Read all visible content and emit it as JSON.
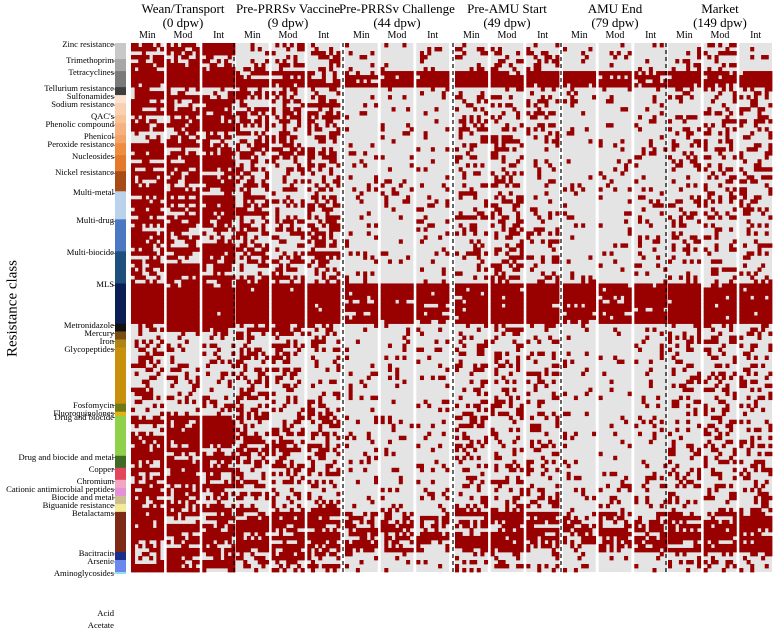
{
  "figure": {
    "y_axis_label": "Resistance class",
    "timepoints": [
      {
        "name": "Wean/Transport",
        "dpw": "(0 dpw)"
      },
      {
        "name": "Pre-PRRSv Vaccine",
        "dpw": "(9 dpw)"
      },
      {
        "name": "Pre-PRRSv Challenge",
        "dpw": "(44 dpw)"
      },
      {
        "name": "Pre-AMU Start",
        "dpw": "(49 dpw)"
      },
      {
        "name": "AMU End",
        "dpw": "(79 dpw)"
      },
      {
        "name": "Market",
        "dpw": "(149 dpw)"
      }
    ],
    "groups": [
      "Min",
      "Mod",
      "Int"
    ]
  },
  "chart_data": {
    "type": "heatmap",
    "value_meaning": "presence (dark red) / absence (light grey) of resistance genes per sample",
    "colors": {
      "present": "#990000",
      "absent": "#e4e4e4"
    },
    "classes": [
      {
        "name": "Zinc resistance",
        "color": "#c8c8c8"
      },
      {
        "name": "Trimethoprim",
        "color": "#a7a7a7"
      },
      {
        "name": "Tetracyclines",
        "color": "#7a7a7a"
      },
      {
        "name": "Tellurium resistance",
        "color": "#3e3e3e"
      },
      {
        "name": "Sulfonamides",
        "color": "#fde3cf"
      },
      {
        "name": "Sodium resistance",
        "color": "#fbd0b0"
      },
      {
        "name": "QAC's",
        "color": "#f9c295"
      },
      {
        "name": "Phenolic compound",
        "color": "#f6b17e"
      },
      {
        "name": "Phenicol",
        "color": "#f3a366"
      },
      {
        "name": "Peroxide resistance",
        "color": "#ef8c3f"
      },
      {
        "name": "Nucleosides",
        "color": "#e4782b"
      },
      {
        "name": "Nickel resistance",
        "color": "#a84b14"
      },
      {
        "name": "Multi-metal",
        "color": "#bad2ec"
      },
      {
        "name": "Multi-drug",
        "color": "#4a78c2"
      },
      {
        "name": "Multi-biocide",
        "color": "#1f4f7c"
      },
      {
        "name": "MLS",
        "color": "#0c1f55"
      },
      {
        "name": "Metronidazole",
        "color": "#111111"
      },
      {
        "name": "Mercury",
        "color": "#7a4e12"
      },
      {
        "name": "Iron",
        "color": "#b08414"
      },
      {
        "name": "Glycopeptides",
        "color": "#c9900b"
      },
      {
        "name": "Fosfomycin",
        "color": "#6e7817"
      },
      {
        "name": "Fluoroquinolones",
        "color": "#e6b110"
      },
      {
        "name": "Drug and biocide",
        "color": "#8fd14a"
      },
      {
        "name": "Drug and biocide and metal",
        "color": "#3f6b24"
      },
      {
        "name": "Copper",
        "color": "#e3455d"
      },
      {
        "name": "Chromium",
        "color": "#f3a6c2"
      },
      {
        "name": "Cationic antimicrobial peptides",
        "color": "#e58fd8"
      },
      {
        "name": "Biocide and metal",
        "color": "#cdbd8f"
      },
      {
        "name": "Biguanide resistance",
        "color": "#f2ea96"
      },
      {
        "name": "Betalactams",
        "color": "#7e2a16"
      },
      {
        "name": "Bacitracin",
        "color": "#1a2f8c"
      },
      {
        "name": "Arsenic",
        "color": "#6c87ee"
      },
      {
        "name": "Aminoglycosides",
        "color": "#8ee2ef"
      },
      {
        "name": "Acid",
        "color": "#1e7f7c"
      },
      {
        "name": "Acetate",
        "color": "#0f3d22"
      }
    ]
  }
}
